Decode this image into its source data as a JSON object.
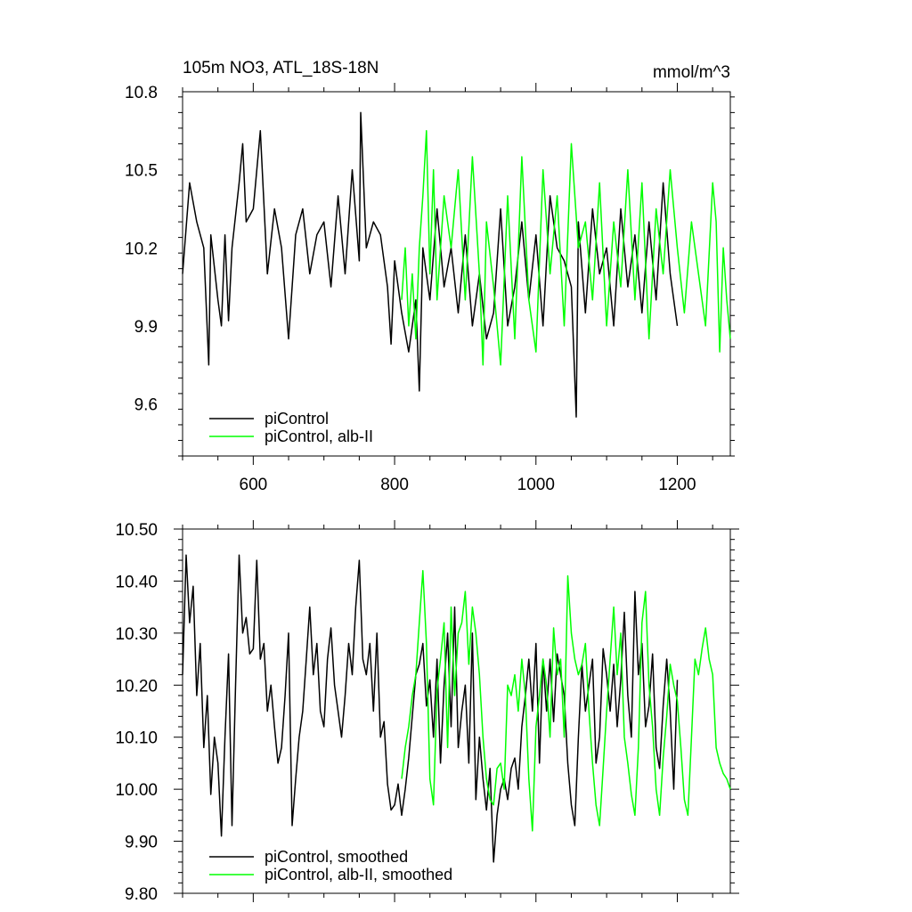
{
  "chart_data": [
    {
      "type": "line",
      "title": "105m NO3, ATL_18S-18N",
      "units": "mmol/m^3",
      "xlim": [
        500,
        1275
      ],
      "ylim": [
        9.4,
        10.8
      ],
      "x_ticks": [
        600,
        800,
        1000,
        1200
      ],
      "x_tick_labels": [
        "600",
        "800",
        "1000",
        "1200"
      ],
      "y_ticks": [
        9.6,
        9.9,
        10.2,
        10.5,
        10.8
      ],
      "y_tick_labels": [
        "9.6",
        "9.9",
        "10.2",
        "10.5",
        "10.8"
      ],
      "legend": "bottom-left",
      "series": [
        {
          "name": "piControl",
          "color": "#000000",
          "x": [
            500,
            510,
            520,
            530,
            537,
            540,
            550,
            555,
            560,
            565,
            570,
            580,
            585,
            590,
            600,
            610,
            620,
            630,
            640,
            650,
            660,
            670,
            680,
            690,
            700,
            710,
            720,
            730,
            740,
            750,
            752,
            760,
            770,
            780,
            790,
            795,
            800,
            810,
            820,
            830,
            835,
            840,
            850,
            860,
            870,
            880,
            890,
            900,
            910,
            920,
            930,
            940,
            950,
            960,
            970,
            980,
            990,
            1000,
            1010,
            1020,
            1030,
            1040,
            1050,
            1057,
            1060,
            1070,
            1080,
            1090,
            1100,
            1110,
            1120,
            1130,
            1140,
            1150,
            1160,
            1170,
            1180,
            1190,
            1200
          ],
          "values": [
            10.1,
            10.45,
            10.3,
            10.2,
            9.75,
            10.25,
            10.0,
            9.9,
            10.25,
            9.92,
            10.2,
            10.45,
            10.6,
            10.3,
            10.35,
            10.65,
            10.1,
            10.35,
            10.2,
            9.85,
            10.25,
            10.35,
            10.1,
            10.25,
            10.3,
            10.05,
            10.4,
            10.1,
            10.5,
            10.15,
            10.72,
            10.2,
            10.3,
            10.25,
            10.05,
            9.83,
            10.15,
            9.95,
            9.8,
            10.0,
            9.65,
            10.2,
            10.0,
            10.35,
            10.05,
            10.2,
            9.95,
            10.25,
            9.9,
            10.1,
            9.85,
            9.95,
            10.35,
            9.9,
            10.05,
            10.3,
            10.0,
            10.25,
            9.9,
            10.4,
            10.2,
            10.15,
            10.05,
            9.55,
            10.3,
            9.95,
            10.35,
            10.1,
            10.2,
            9.9,
            10.35,
            10.05,
            10.25,
            9.95,
            10.3,
            10.0,
            10.45,
            10.1,
            9.9
          ]
        },
        {
          "name": "piControl, alb-II",
          "color": "#00ff00",
          "x": [
            810,
            815,
            820,
            825,
            830,
            835,
            840,
            845,
            850,
            855,
            860,
            870,
            880,
            890,
            900,
            910,
            920,
            925,
            930,
            940,
            950,
            960,
            970,
            980,
            990,
            1000,
            1010,
            1020,
            1030,
            1040,
            1050,
            1060,
            1070,
            1080,
            1090,
            1100,
            1110,
            1120,
            1130,
            1140,
            1150,
            1160,
            1170,
            1180,
            1190,
            1200,
            1210,
            1220,
            1230,
            1240,
            1250,
            1255,
            1260,
            1265,
            1270,
            1275
          ],
          "values": [
            10.0,
            10.2,
            9.9,
            10.1,
            9.85,
            10.2,
            10.4,
            10.65,
            10.1,
            10.5,
            10.0,
            10.4,
            10.2,
            10.5,
            10.0,
            10.55,
            10.1,
            9.75,
            10.3,
            10.05,
            9.75,
            10.4,
            9.85,
            10.55,
            10.0,
            9.8,
            10.5,
            10.1,
            10.4,
            9.9,
            10.6,
            10.2,
            10.3,
            10.0,
            10.45,
            9.9,
            10.3,
            10.05,
            10.5,
            10.0,
            10.45,
            9.85,
            10.35,
            10.1,
            10.5,
            10.2,
            9.95,
            10.3,
            10.1,
            9.9,
            10.45,
            10.3,
            9.8,
            10.2,
            10.0,
            9.85
          ]
        }
      ]
    },
    {
      "type": "line",
      "xlim": [
        500,
        1275
      ],
      "ylim": [
        9.8,
        10.5
      ],
      "x_ticks": [
        600,
        800,
        1000,
        1200
      ],
      "y_ticks": [
        9.8,
        9.9,
        10.0,
        10.1,
        10.2,
        10.3,
        10.4,
        10.5
      ],
      "y_tick_labels": [
        "9.80",
        "9.90",
        "10.00",
        "10.10",
        "10.20",
        "10.30",
        "10.40",
        "10.50"
      ],
      "legend": "bottom-left",
      "series": [
        {
          "name": "piControl, smoothed",
          "color": "#000000",
          "x": [
            500,
            505,
            510,
            515,
            520,
            525,
            530,
            535,
            540,
            545,
            550,
            555,
            560,
            565,
            570,
            575,
            580,
            585,
            590,
            595,
            600,
            605,
            610,
            615,
            620,
            625,
            630,
            635,
            640,
            645,
            650,
            655,
            660,
            665,
            670,
            675,
            680,
            685,
            690,
            695,
            700,
            705,
            710,
            715,
            720,
            725,
            730,
            735,
            740,
            745,
            750,
            755,
            760,
            765,
            770,
            775,
            780,
            785,
            790,
            795,
            800,
            805,
            810,
            815,
            820,
            825,
            830,
            835,
            840,
            845,
            850,
            855,
            860,
            865,
            870,
            875,
            880,
            885,
            890,
            895,
            900,
            905,
            910,
            915,
            920,
            925,
            930,
            935,
            940,
            945,
            950,
            955,
            960,
            965,
            970,
            975,
            980,
            985,
            990,
            995,
            1000,
            1005,
            1010,
            1015,
            1020,
            1025,
            1030,
            1035,
            1040,
            1045,
            1050,
            1055,
            1060,
            1065,
            1070,
            1075,
            1080,
            1085,
            1090,
            1095,
            1100,
            1105,
            1110,
            1115,
            1120,
            1125,
            1130,
            1135,
            1140,
            1145,
            1150,
            1155,
            1160,
            1165,
            1170,
            1175,
            1180,
            1185,
            1190,
            1195,
            1200
          ],
          "values": [
            10.22,
            10.45,
            10.32,
            10.39,
            10.18,
            10.28,
            10.08,
            10.18,
            9.99,
            10.1,
            10.05,
            9.91,
            10.1,
            10.26,
            9.93,
            10.2,
            10.45,
            10.3,
            10.33,
            10.26,
            10.27,
            10.44,
            10.25,
            10.28,
            10.15,
            10.2,
            10.12,
            10.05,
            10.08,
            10.18,
            10.3,
            9.93,
            10.02,
            10.1,
            10.15,
            10.25,
            10.35,
            10.22,
            10.28,
            10.15,
            10.12,
            10.25,
            10.31,
            10.2,
            10.15,
            10.1,
            10.18,
            10.28,
            10.22,
            10.35,
            10.44,
            10.25,
            10.22,
            10.28,
            10.15,
            10.3,
            10.1,
            10.13,
            10.01,
            9.96,
            9.97,
            10.01,
            9.95,
            10.0,
            10.06,
            10.14,
            10.22,
            10.24,
            10.28,
            10.16,
            10.21,
            10.1,
            10.25,
            10.05,
            10.2,
            10.3,
            10.12,
            10.35,
            10.08,
            10.15,
            10.2,
            10.05,
            10.3,
            9.98,
            10.1,
            10.02,
            9.96,
            10.04,
            9.86,
            9.95,
            10.0,
            10.02,
            9.98,
            10.04,
            10.06,
            10.0,
            10.12,
            10.18,
            10.25,
            10.15,
            10.28,
            10.05,
            10.25,
            10.15,
            10.25,
            10.13,
            10.26,
            10.22,
            10.18,
            10.05,
            9.97,
            9.93,
            10.1,
            10.24,
            10.15,
            10.2,
            10.25,
            10.05,
            10.1,
            10.27,
            10.22,
            10.15,
            10.24,
            10.12,
            10.21,
            10.34,
            10.18,
            10.1,
            10.38,
            10.22,
            10.28,
            10.12,
            10.16,
            10.26,
            10.08,
            10.04,
            10.16,
            10.25,
            10.15,
            10.0,
            10.21
          ]
        },
        {
          "name": "piControl, alb-II, smoothed",
          "color": "#00ff00",
          "x": [
            810,
            815,
            820,
            825,
            830,
            835,
            840,
            845,
            850,
            855,
            860,
            865,
            870,
            875,
            880,
            885,
            890,
            895,
            900,
            905,
            910,
            915,
            920,
            925,
            930,
            935,
            940,
            945,
            950,
            955,
            960,
            965,
            970,
            975,
            980,
            985,
            990,
            995,
            1000,
            1005,
            1010,
            1015,
            1020,
            1025,
            1030,
            1035,
            1040,
            1045,
            1050,
            1055,
            1060,
            1065,
            1070,
            1075,
            1080,
            1085,
            1090,
            1095,
            1100,
            1105,
            1110,
            1115,
            1120,
            1125,
            1130,
            1135,
            1140,
            1145,
            1150,
            1155,
            1160,
            1165,
            1170,
            1175,
            1180,
            1185,
            1190,
            1195,
            1200,
            1205,
            1210,
            1215,
            1220,
            1225,
            1230,
            1235,
            1240,
            1245,
            1250,
            1255,
            1260,
            1265,
            1270,
            1275
          ],
          "values": [
            10.02,
            10.08,
            10.12,
            10.18,
            10.22,
            10.32,
            10.42,
            10.28,
            10.02,
            9.97,
            10.19,
            10.25,
            10.32,
            10.08,
            10.35,
            10.18,
            10.3,
            10.32,
            10.38,
            10.24,
            10.35,
            10.3,
            10.22,
            10.1,
            10.02,
            9.98,
            9.97,
            10.04,
            10.05,
            10.0,
            10.2,
            10.18,
            10.22,
            10.15,
            10.25,
            10.18,
            10.02,
            9.92,
            10.12,
            10.18,
            10.25,
            10.2,
            10.1,
            10.31,
            10.22,
            10.25,
            10.1,
            10.41,
            10.3,
            10.25,
            10.22,
            10.24,
            10.28,
            10.15,
            10.05,
            9.97,
            9.93,
            10.04,
            10.15,
            10.25,
            10.35,
            10.22,
            10.3,
            10.1,
            10.05,
            9.99,
            9.95,
            10.08,
            10.32,
            10.38,
            10.2,
            10.12,
            10.0,
            9.95,
            10.06,
            10.14,
            10.24,
            10.2,
            10.17,
            10.08,
            9.98,
            9.95,
            10.1,
            10.25,
            10.22,
            10.27,
            10.31,
            10.25,
            10.22,
            10.08,
            10.05,
            10.03,
            10.02,
            10.0
          ]
        }
      ]
    }
  ]
}
